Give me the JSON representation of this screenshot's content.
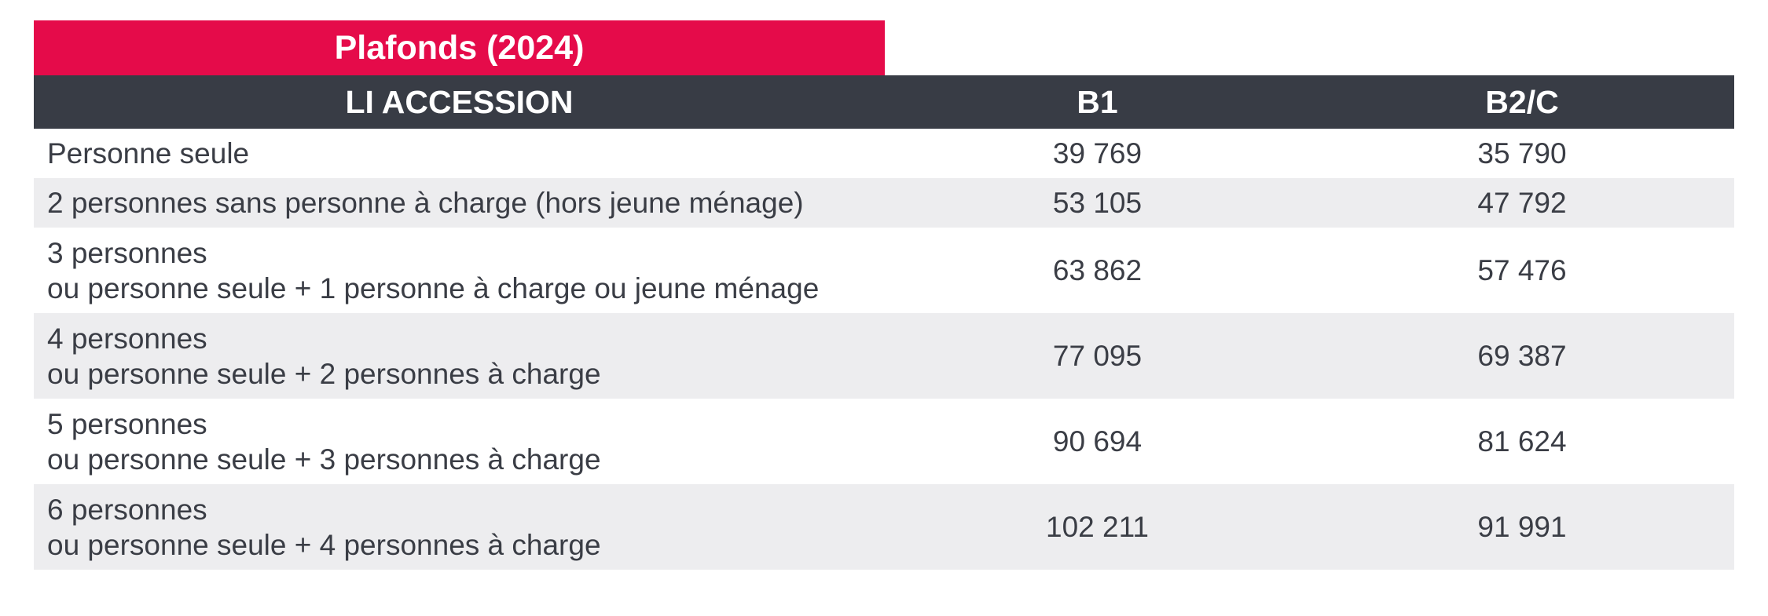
{
  "title": "Plafonds (2024)",
  "header": {
    "col1": "LI ACCESSION",
    "col2": "B1",
    "col3": "B2/C"
  },
  "rows": [
    {
      "label": [
        "Personne seule"
      ],
      "b1": "39 769",
      "b2c": "35 790"
    },
    {
      "label": [
        "2 personnes sans personne à charge (hors jeune ménage)"
      ],
      "b1": "53 105",
      "b2c": "47 792"
    },
    {
      "label": [
        "3 personnes",
        "ou personne seule + 1 personne à charge ou jeune ménage"
      ],
      "b1": "63 862",
      "b2c": "57 476"
    },
    {
      "label": [
        "4 personnes",
        "ou personne seule + 2 personnes à charge"
      ],
      "b1": "77 095",
      "b2c": "69 387"
    },
    {
      "label": [
        "5 personnes",
        "ou personne seule + 3 personnes à charge"
      ],
      "b1": "90 694",
      "b2c": "81 624"
    },
    {
      "label": [
        "6 personnes",
        "ou personne seule + 4 personnes à charge"
      ],
      "b1": "102 211",
      "b2c": "91 991"
    }
  ],
  "colors": {
    "title_bg": "#e50b4a",
    "header_bg": "#383c45",
    "row_shade": "#ededef",
    "text": "#3a3d45"
  }
}
